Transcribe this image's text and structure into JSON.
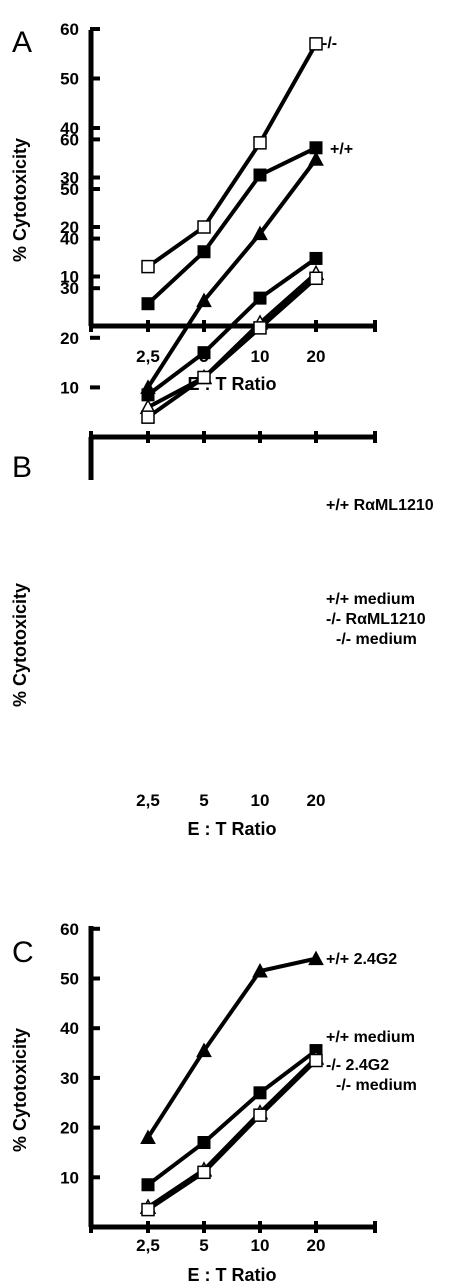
{
  "chart_data": [
    {
      "type": "line",
      "panel": "A",
      "xlabel": "E : T Ratio",
      "ylabel": "% Cytotoxicity",
      "categories": [
        "2,5",
        "5",
        "10",
        "20"
      ],
      "yticks": [
        10,
        20,
        30,
        40,
        50,
        60
      ],
      "ylim": [
        0,
        60
      ],
      "grid": false,
      "series": [
        {
          "name": "-/-",
          "marker": "open-square",
          "values": [
            12,
            20,
            37,
            57
          ]
        },
        {
          "name": "+/+",
          "marker": "filled-square",
          "values": [
            4.5,
            15,
            30.5,
            36
          ]
        }
      ]
    },
    {
      "type": "line",
      "panel": "B",
      "xlabel": "E : T Ratio",
      "ylabel": "% Cytotoxicity",
      "categories": [
        "2,5",
        "5",
        "10",
        "20"
      ],
      "yticks": [
        10,
        20,
        30,
        40,
        50,
        60
      ],
      "ylim": [
        0,
        60
      ],
      "grid": false,
      "series": [
        {
          "name": "+/+ RαML1210",
          "marker": "filled-triangle",
          "values": [
            10,
            27.5,
            41,
            56
          ]
        },
        {
          "name": "+/+ medium",
          "marker": "filled-square",
          "values": [
            8.5,
            17,
            28,
            36
          ]
        },
        {
          "name": "-/- RαML1210",
          "marker": "open-triangle",
          "values": [
            6,
            12,
            23,
            33
          ]
        },
        {
          "name": "-/- medium",
          "marker": "open-square",
          "values": [
            4,
            12,
            22,
            32
          ]
        }
      ]
    },
    {
      "type": "line",
      "panel": "C",
      "xlabel": "E : T Ratio",
      "ylabel": "% Cytotoxicity",
      "categories": [
        "2,5",
        "5",
        "10",
        "20"
      ],
      "yticks": [
        10,
        20,
        30,
        40,
        50,
        60
      ],
      "ylim": [
        0,
        60
      ],
      "grid": false,
      "series": [
        {
          "name": "+/+ 2.4G2",
          "marker": "filled-triangle",
          "values": [
            18,
            35.5,
            51.5,
            54
          ]
        },
        {
          "name": "+/+ medium",
          "marker": "filled-square",
          "values": [
            8.5,
            17,
            27,
            35.5
          ]
        },
        {
          "name": "-/- 2.4G2",
          "marker": "open-triangle",
          "values": [
            4,
            11.5,
            23,
            34
          ]
        },
        {
          "name": "-/- medium",
          "marker": "open-square",
          "values": [
            3.5,
            11,
            22.5,
            33.5
          ]
        }
      ]
    }
  ]
}
